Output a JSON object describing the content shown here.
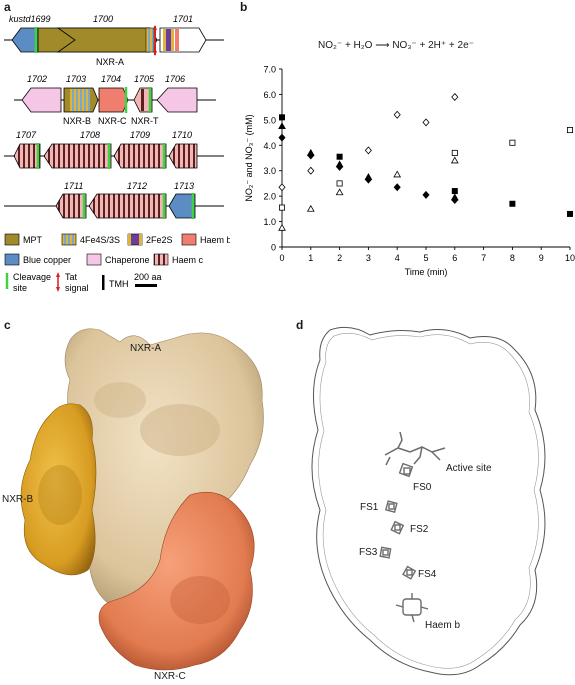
{
  "panel_a": {
    "letter": "a",
    "row1_labels": {
      "gene_1699": "kustd1699",
      "gene_1700": "1700",
      "gene_1701": "1701",
      "protein_a": "NXR-A"
    },
    "row2_labels": {
      "gene_1702": "1702",
      "gene_1703": "1703",
      "gene_1704": "1704",
      "gene_1705": "1705",
      "gene_1706": "1706",
      "protein_b": "NXR-B",
      "protein_c": "NXR-C",
      "protein_t": "NXR-T"
    },
    "row3_labels": {
      "gene_1707": "1707",
      "gene_1708": "1708",
      "gene_1709": "1709",
      "gene_1710": "1710"
    },
    "row4_labels": {
      "gene_1711": "1711",
      "gene_1712": "1712",
      "gene_1713": "1713"
    },
    "legend": {
      "mpt": "MPT",
      "fe4s": "4Fe4S/3S",
      "fe2s": "2Fe2S",
      "haem_b": "Haem b",
      "blue_copper": "Blue copper",
      "chaperone": "Chaperone",
      "haem_c": "Haem c",
      "cleavage_line1": "Cleavage",
      "cleavage_line2": "site",
      "tat_line1": "Tat",
      "tat_line2": "signal",
      "tmh": "TMH",
      "scale": "200 aa"
    },
    "colors": {
      "mpt": "#a08a2a",
      "fe4s": "#7aa8c8",
      "fe2s": "#6a3d9a",
      "haem_b": "#f07e6e",
      "blue_copper": "#5b8cc4",
      "chaperone": "#f5c6e6",
      "haem_c": "#f3b6b6",
      "cleavage": "#3fd43f",
      "tat": "#d61f1f"
    }
  },
  "panel_b": {
    "letter": "b",
    "equation": "NO₂⁻ + H₂O ⟶ NO₃⁻ + 2H⁺ + 2e⁻"
  },
  "chart_data": {
    "type": "scatter",
    "xlabel": "Time (min)",
    "ylabel": "NO₂⁻ and NO₃⁻ (mM)",
    "xlim": [
      0,
      10
    ],
    "ylim": [
      0,
      7
    ],
    "x_ticks": [
      "0",
      "1",
      "2",
      "3",
      "4",
      "5",
      "6",
      "7",
      "8",
      "9",
      "10"
    ],
    "y_ticks": [
      "0",
      "1.0",
      "2.0",
      "3.0",
      "4.0",
      "5.0",
      "6.0",
      "7.0"
    ],
    "grid": false,
    "series": [
      {
        "marker": "filled-square",
        "points": [
          [
            0,
            5.1
          ],
          [
            2,
            3.55
          ],
          [
            6,
            2.2
          ],
          [
            8,
            1.7
          ],
          [
            10,
            1.3
          ]
        ]
      },
      {
        "marker": "filled-triangle",
        "points": [
          [
            0,
            4.75
          ],
          [
            1,
            3.7
          ],
          [
            2,
            3.25
          ],
          [
            3,
            2.75
          ],
          [
            6,
            1.95
          ]
        ]
      },
      {
        "marker": "filled-diamond",
        "points": [
          [
            0,
            4.3
          ],
          [
            1,
            3.6
          ],
          [
            2,
            3.15
          ],
          [
            3,
            2.65
          ],
          [
            4,
            2.35
          ],
          [
            5,
            2.05
          ],
          [
            6,
            1.85
          ]
        ]
      },
      {
        "marker": "open-square",
        "points": [
          [
            0,
            1.55
          ],
          [
            2,
            2.5
          ],
          [
            6,
            3.7
          ],
          [
            8,
            4.1
          ],
          [
            10,
            4.6
          ]
        ]
      },
      {
        "marker": "open-triangle",
        "points": [
          [
            0,
            0.75
          ],
          [
            1,
            1.5
          ],
          [
            2,
            2.15
          ],
          [
            4,
            2.85
          ],
          [
            6,
            3.4
          ]
        ]
      },
      {
        "marker": "open-diamond",
        "points": [
          [
            0,
            2.35
          ],
          [
            1,
            3.0
          ],
          [
            3,
            3.8
          ],
          [
            4,
            5.2
          ],
          [
            5,
            4.9
          ],
          [
            6,
            5.9
          ]
        ]
      }
    ]
  },
  "panel_c": {
    "letter": "c",
    "label_a": "NXR-A",
    "label_b": "NXR-B",
    "label_c": "NXR-C",
    "colors": {
      "nxr_a": "#e3cda8",
      "nxr_b": "#e2aa2c",
      "nxr_c": "#e9835a"
    }
  },
  "panel_d": {
    "letter": "d",
    "labels": {
      "active_site": "Active site",
      "fs0": "FS0",
      "fs1": "FS1",
      "fs2": "FS2",
      "fs3": "FS3",
      "fs4": "FS4",
      "haem_b": "Haem b"
    }
  }
}
